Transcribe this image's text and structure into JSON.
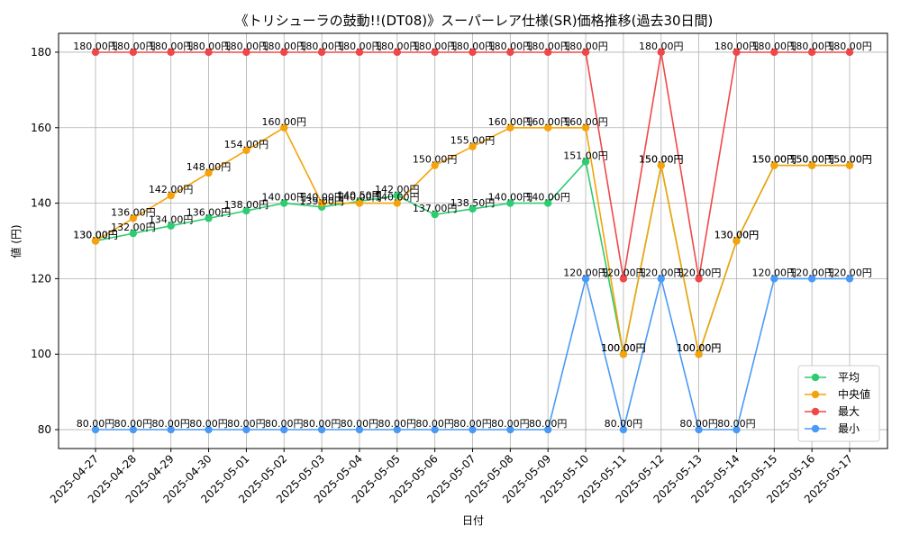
{
  "chart_data": {
    "type": "line",
    "title": "《トリシューラの鼓動!!(DT08)》スーパーレア仕様(SR)価格推移(過去30日間)",
    "xlabel": "日付",
    "ylabel": "値 (円)",
    "ylim": [
      75,
      185
    ],
    "yticks": [
      80,
      100,
      120,
      140,
      160,
      180
    ],
    "grid": true,
    "legend_position": "lower-right",
    "categories": [
      "2025-04-27",
      "2025-04-28",
      "2025-04-29",
      "2025-04-30",
      "2025-05-01",
      "2025-05-02",
      "2025-05-03",
      "2025-05-04",
      "2025-05-05",
      "2025-05-06",
      "2025-05-07",
      "2025-05-08",
      "2025-05-09",
      "2025-05-10",
      "2025-05-11",
      "2025-05-12",
      "2025-05-13",
      "2025-05-14",
      "2025-05-15",
      "2025-05-16",
      "2025-05-17"
    ],
    "series": [
      {
        "name": "平均",
        "color": "#2ecc71",
        "values": [
          130,
          132,
          134,
          136,
          138,
          140,
          139,
          140.5,
          142,
          137,
          138.5,
          140,
          140,
          151,
          100,
          150,
          100,
          130,
          150,
          150,
          150
        ],
        "labels": [
          "130.00円",
          "132.00円",
          "134.00円",
          "136.00円",
          "138.00円",
          "140.00円",
          "139.00円",
          "140.50円",
          "142.00円",
          "137.00円",
          "138.50円",
          "140.00円",
          "140.00円",
          "151.00円",
          "100.00円",
          "150.00円",
          "100.00円",
          "130.00円",
          "150.00円",
          "150.00円",
          "150.00円"
        ]
      },
      {
        "name": "中央値",
        "color": "#f5a30a",
        "values": [
          130,
          136,
          142,
          148,
          154,
          160,
          140,
          140,
          140,
          150,
          155,
          160,
          160,
          160,
          100,
          150,
          100,
          130,
          150,
          150,
          150
        ],
        "labels": [
          "130.00円",
          "136.00円",
          "142.00円",
          "148.00円",
          "154.00円",
          "160.00円",
          "140.00円",
          "140.00円",
          "140.00円",
          "150.00円",
          "155.00円",
          "160.00円",
          "160.00円",
          "160.00円",
          "100.00円",
          "150.00円",
          "100.00円",
          "130.00円",
          "150.00円",
          "150.00円",
          "150.00円"
        ]
      },
      {
        "name": "最大",
        "color": "#f04848",
        "values": [
          180,
          180,
          180,
          180,
          180,
          180,
          180,
          180,
          180,
          180,
          180,
          180,
          180,
          180,
          120,
          180,
          120,
          180,
          180,
          180,
          180
        ],
        "labels": [
          "180.00円",
          "180.00円",
          "180.00円",
          "180.00円",
          "180.00円",
          "180.00円",
          "180.00円",
          "180.00円",
          "180.00円",
          "180.00円",
          "180.00円",
          "180.00円",
          "180.00円",
          "180.00円",
          "120.00円",
          "180.00円",
          "120.00円",
          "180.00円",
          "180.00円",
          "180.00円",
          "180.00円"
        ]
      },
      {
        "name": "最小",
        "color": "#4a9af5",
        "values": [
          80,
          80,
          80,
          80,
          80,
          80,
          80,
          80,
          80,
          80,
          80,
          80,
          80,
          120,
          80,
          120,
          80,
          80,
          120,
          120,
          120
        ],
        "labels": [
          "80.00円",
          "80.00円",
          "80.00円",
          "80.00円",
          "80.00円",
          "80.00円",
          "80.00円",
          "80.00円",
          "80.00円",
          "80.00円",
          "80.00円",
          "80.00円",
          "80.00円",
          "120.00円",
          "80.00円",
          "120.00円",
          "80.00円",
          "80.00円",
          "120.00円",
          "120.00円",
          "120.00円"
        ]
      }
    ]
  }
}
